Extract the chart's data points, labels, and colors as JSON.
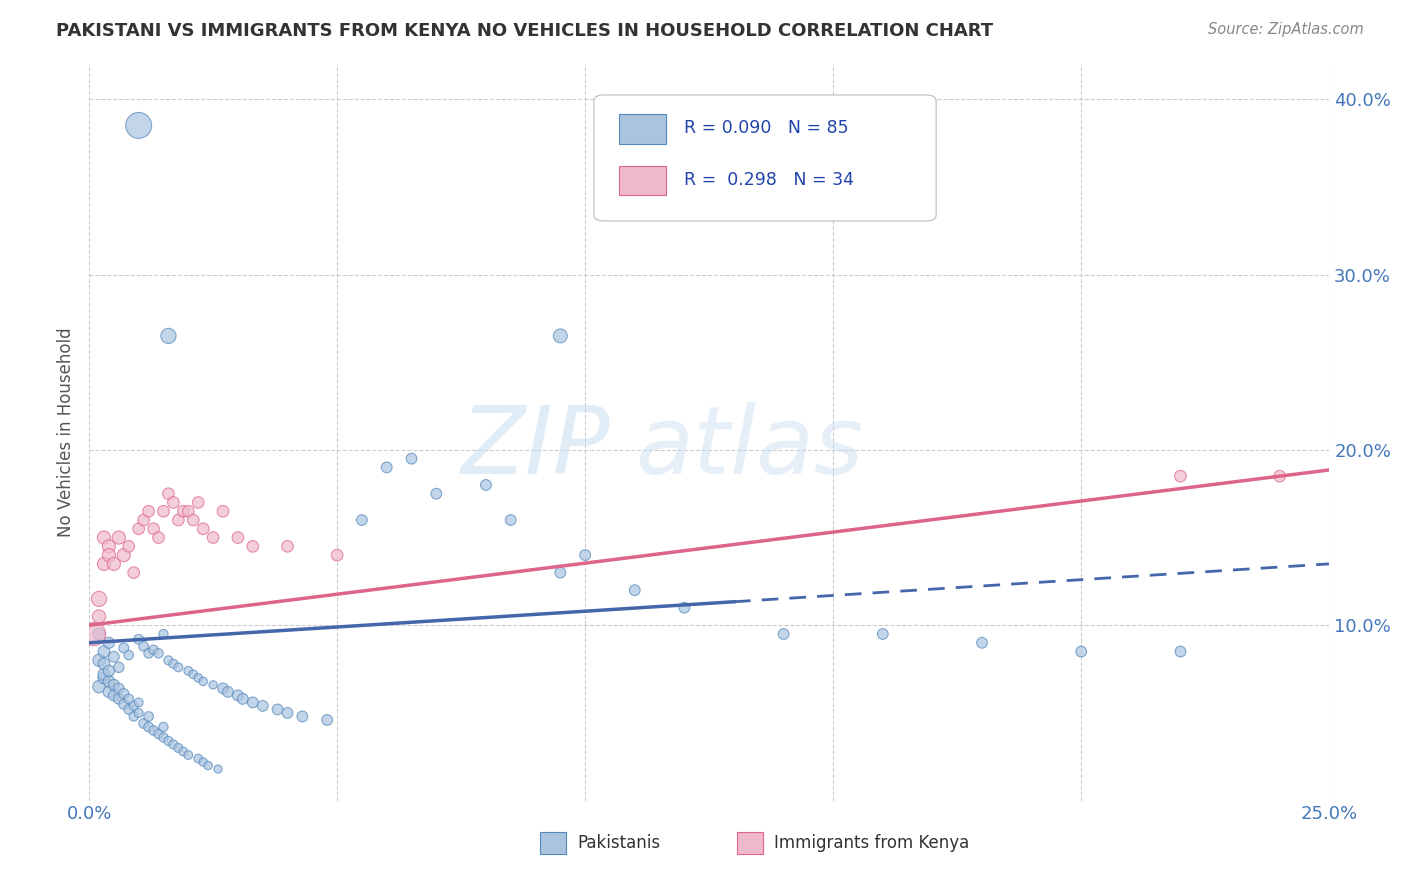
{
  "title": "PAKISTANI VS IMMIGRANTS FROM KENYA NO VEHICLES IN HOUSEHOLD CORRELATION CHART",
  "source": "Source: ZipAtlas.com",
  "ylabel": "No Vehicles in Household",
  "xlim": [
    0.0,
    0.25
  ],
  "ylim": [
    0.0,
    0.42
  ],
  "watermark_zip": "ZIP",
  "watermark_atlas": "atlas",
  "pakistani_color": "#aac4e0",
  "pakistani_edge": "#5588bb",
  "kenya_color": "#f0b8cc",
  "kenya_edge": "#dd6688",
  "trend_pak_color": "#4466aa",
  "trend_ken_color": "#dd6688",
  "background_color": "#ffffff",
  "grid_color": "#cccccc",
  "axis_label_color": "#4477bb",
  "title_color": "#333333"
}
